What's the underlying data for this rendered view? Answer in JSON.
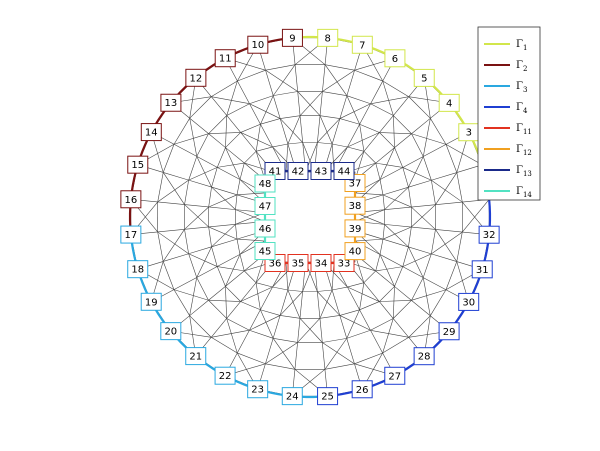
{
  "boundaries": [
    {
      "symbol": "Γ",
      "subscript": "1",
      "color": "#d2e64b",
      "labels": [
        3,
        4,
        5,
        6,
        7,
        8
      ]
    },
    {
      "symbol": "Γ",
      "subscript": "2",
      "color": "#7a1212",
      "labels": [
        9,
        10,
        11,
        12,
        13,
        14,
        15,
        16
      ]
    },
    {
      "symbol": "Γ",
      "subscript": "3",
      "color": "#2aa8e0",
      "labels": [
        17,
        18,
        19,
        20,
        21,
        22,
        23,
        24
      ]
    },
    {
      "symbol": "Γ",
      "subscript": "4",
      "color": "#1f3fd2",
      "labels": [
        25,
        26,
        27,
        28,
        29,
        30,
        31,
        32
      ]
    },
    {
      "symbol": "Γ",
      "subscript": "11",
      "color": "#e23220",
      "labels": [
        33,
        34,
        35,
        36
      ]
    },
    {
      "symbol": "Γ",
      "subscript": "12",
      "color": "#f0a020",
      "labels": [
        37,
        38,
        39,
        40
      ]
    },
    {
      "symbol": "Γ",
      "subscript": "13",
      "color": "#1a2a8a",
      "labels": [
        41,
        42,
        43,
        44
      ]
    },
    {
      "symbol": "Γ",
      "subscript": "14",
      "color": "#52e2c2",
      "labels": [
        45,
        46,
        47,
        48
      ]
    }
  ]
}
